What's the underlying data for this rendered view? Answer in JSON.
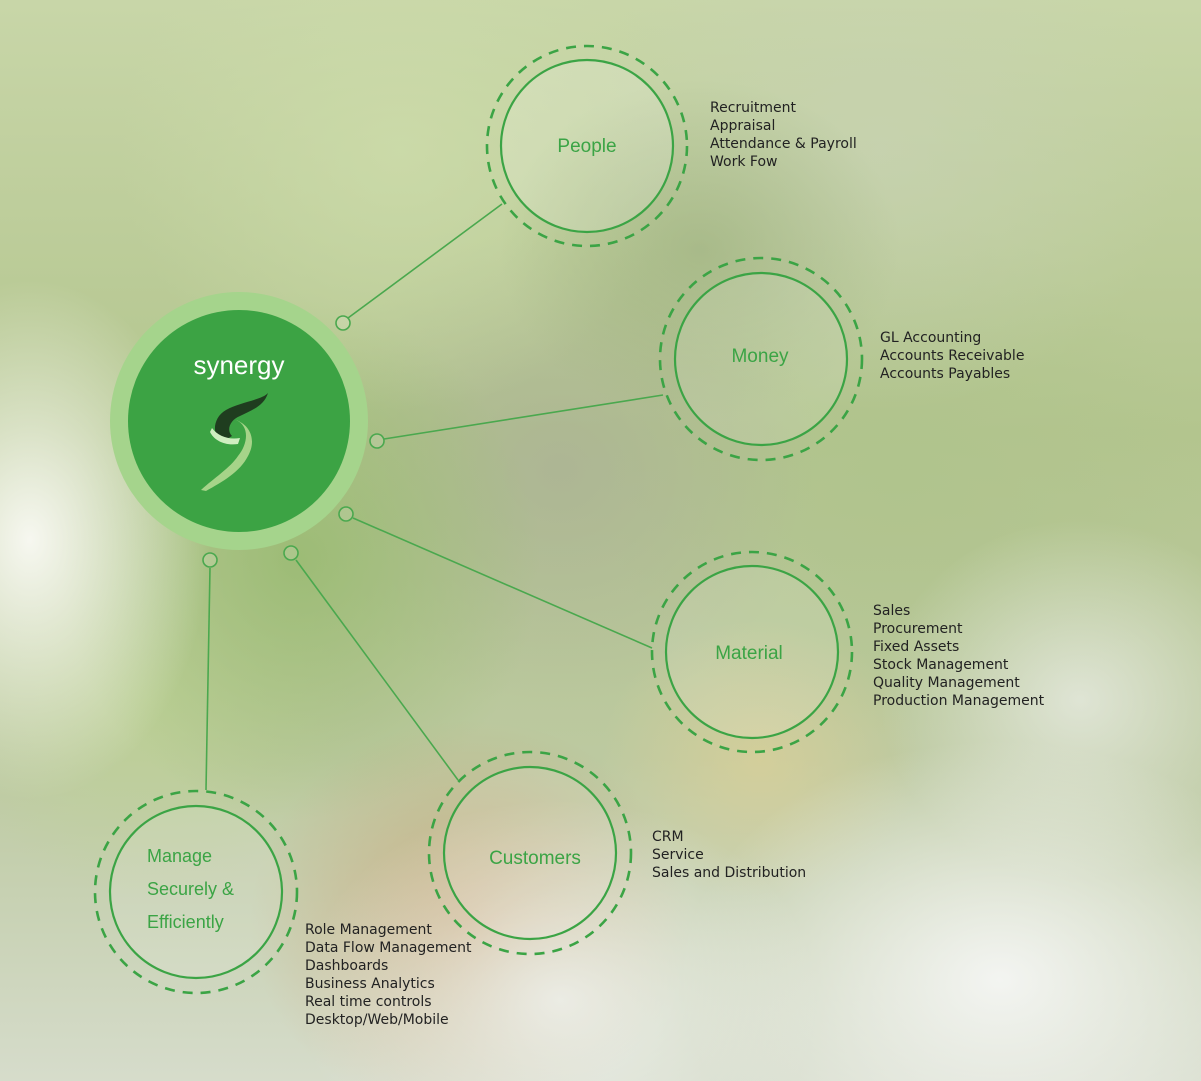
{
  "hub": {
    "title": "synergy",
    "logo_icon": "swirl-s-logo-icon",
    "colors": {
      "fill": "#3ca344",
      "ring": "#a5d48c",
      "accent": "#3ba445"
    }
  },
  "nodes": [
    {
      "id": "people",
      "label": "People",
      "items": [
        "Recruitment",
        "Appraisal",
        "Attendance & Payroll",
        "Work Fow"
      ]
    },
    {
      "id": "money",
      "label": "Money",
      "items": [
        "GL Accounting",
        "Accounts Receivable",
        "Accounts Payables"
      ]
    },
    {
      "id": "material",
      "label": "Material",
      "items": [
        "Sales",
        "Procurement",
        "Fixed Assets",
        "Stock Management",
        "Quality Management",
        "Production Management"
      ]
    },
    {
      "id": "customers",
      "label": "Customers",
      "items": [
        "CRM",
        "Service",
        "Sales and Distribution"
      ]
    },
    {
      "id": "manage",
      "label_lines": [
        "Manage",
        "Securely &",
        "Efficiently"
      ],
      "items": [
        "Role Management",
        "Data Flow Management",
        "Dashboards",
        "Business Analytics",
        "Real time controls",
        "Desktop/Web/Mobile"
      ]
    }
  ]
}
